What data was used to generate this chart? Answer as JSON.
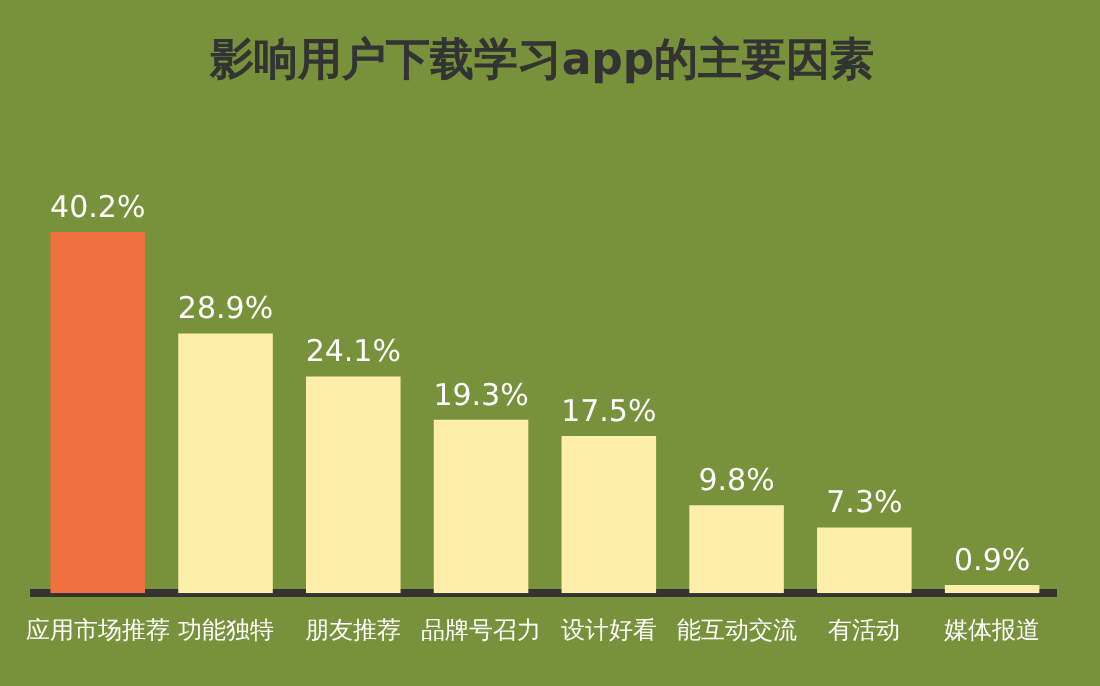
{
  "chart_data": {
    "type": "bar",
    "title": "影响用户下载学习app的主要因素",
    "categories": [
      "应用市场推荐",
      "功能独特",
      "朋友推荐",
      "品牌号召力",
      "设计好看",
      "能互动交流",
      "有活动",
      "媒体报道"
    ],
    "values": [
      40.2,
      28.9,
      24.1,
      19.3,
      17.5,
      9.8,
      7.3,
      0.9
    ],
    "value_labels": [
      "40.2%",
      "28.9%",
      "24.1%",
      "19.3%",
      "17.5%",
      "9.8%",
      "7.3%",
      "0.9%"
    ],
    "colors": [
      "#f07040",
      "#fdeeaa",
      "#fdeeaa",
      "#fdeeaa",
      "#fdeeaa",
      "#fdeeaa",
      "#fdeeaa",
      "#fdeeaa"
    ],
    "grid": false,
    "legend": false,
    "tick_labels": "x"
  }
}
